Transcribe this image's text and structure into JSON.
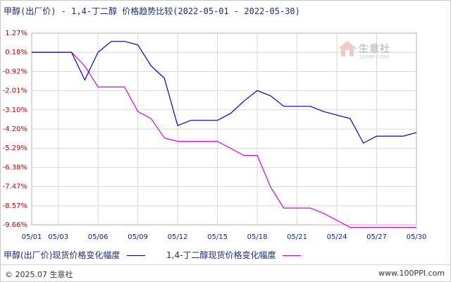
{
  "title": "甲醇(出厂价) - 1,4-丁二醇 价格趋势比较(2022-05-01 - 2022-05-30)",
  "watermark": {
    "text": "生意社",
    "sub": "100PPI.COM"
  },
  "footer": {
    "copyright": "© 2025.07 生意社",
    "site": "www.100PPI.com"
  },
  "chart_data": {
    "type": "line",
    "title": "甲醇(出厂价) - 1,4-丁二醇 价格趋势比较(2022-05-01 - 2022-05-30)",
    "x": [
      "05/01",
      "05/02",
      "05/03",
      "05/04",
      "05/05",
      "05/06",
      "05/07",
      "05/08",
      "05/09",
      "05/10",
      "05/11",
      "05/12",
      "05/13",
      "05/14",
      "05/15",
      "05/16",
      "05/17",
      "05/18",
      "05/19",
      "05/20",
      "05/21",
      "05/22",
      "05/23",
      "05/24",
      "05/25",
      "05/26",
      "05/27",
      "05/28",
      "05/29",
      "05/30"
    ],
    "x_ticks": [
      "05/01",
      "05/03",
      "05/06",
      "05/09",
      "05/12",
      "05/15",
      "05/18",
      "05/21",
      "05/24",
      "05/27",
      "05/30"
    ],
    "y_ticks": [
      "1.27%",
      "0.18%",
      "-0.92%",
      "-2.01%",
      "-3.10%",
      "-4.20%",
      "-5.29%",
      "-6.38%",
      "-7.47%",
      "-8.57%",
      "-9.66%"
    ],
    "ylim": [
      -9.66,
      1.27
    ],
    "grid": true,
    "legend_position": "bottom",
    "series": [
      {
        "name": "甲醇(出厂价)现货价格变化幅度",
        "color": "#0000cc",
        "values": [
          0.18,
          0.18,
          0.18,
          0.18,
          -1.4,
          0.18,
          0.8,
          0.8,
          0.6,
          -0.6,
          -1.3,
          -4.0,
          -3.7,
          -3.7,
          -3.7,
          -3.3,
          -2.6,
          -2.0,
          -2.3,
          -2.9,
          -2.9,
          -2.9,
          -3.2,
          -3.4,
          -3.6,
          -5.0,
          -4.6,
          -4.6,
          -4.6,
          -4.4
        ]
      },
      {
        "name": "1,4-丁二醇现货价格变化幅度",
        "color": "#dd00dd",
        "values": [
          0.18,
          0.18,
          0.18,
          0.18,
          -0.6,
          -1.8,
          -1.8,
          -1.8,
          -3.2,
          -3.6,
          -4.7,
          -4.9,
          -4.9,
          -4.9,
          -4.9,
          -5.3,
          -5.7,
          -5.7,
          -7.5,
          -8.7,
          -8.7,
          -8.7,
          -9.0,
          -9.4,
          -9.8,
          -9.8,
          -9.8,
          -9.8,
          -9.8,
          -9.8
        ]
      }
    ]
  }
}
